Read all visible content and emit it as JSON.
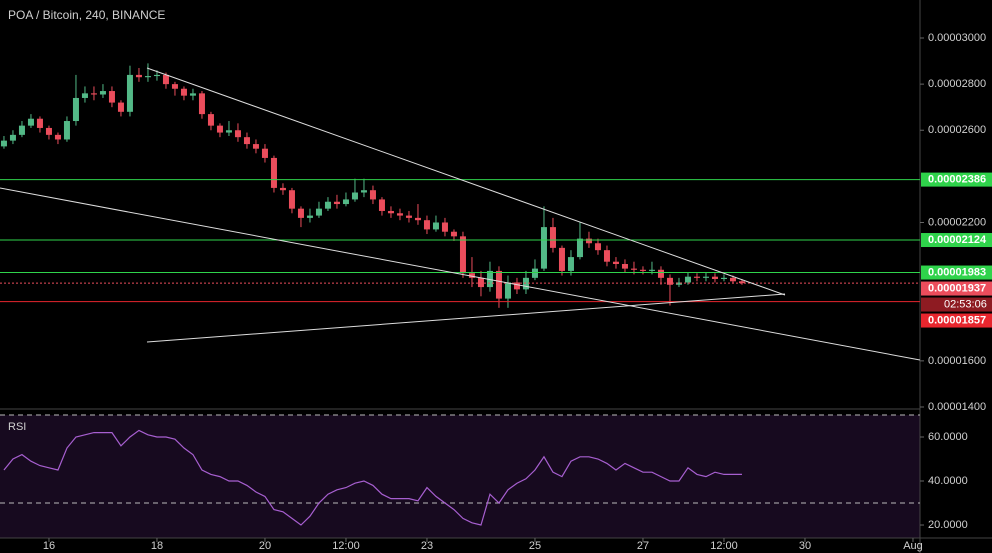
{
  "chart_data": [
    {
      "type": "candlestick",
      "title": "POA / Bitcoin, 240, BINANCE",
      "up_color": "#53b987",
      "down_color": "#eb4d5c",
      "open": [
        2.53e-05,
        2.555e-05,
        2.58e-05,
        2.62e-05,
        2.65e-05,
        2.61e-05,
        2.58e-05,
        2.56e-05,
        2.64e-05,
        2.74e-05,
        2.76e-05,
        2.755e-05,
        2.77e-05,
        2.72e-05,
        2.68e-05,
        2.84e-05,
        2.83e-05,
        2.835e-05,
        2.84e-05,
        2.8e-05,
        2.78e-05,
        2.75e-05,
        2.76e-05,
        2.67e-05,
        2.62e-05,
        2.59e-05,
        2.6e-05,
        2.57e-05,
        2.54e-05,
        2.52e-05,
        2.48e-05,
        2.35e-05,
        2.34e-05,
        2.26e-05,
        2.22e-05,
        2.23e-05,
        2.26e-05,
        2.29e-05,
        2.28e-05,
        2.3e-05,
        2.33e-05,
        2.34e-05,
        2.3e-05,
        2.25e-05,
        2.24e-05,
        2.23e-05,
        2.22e-05,
        2.21e-05,
        2.17e-05,
        2.2e-05,
        2.16e-05,
        2.14e-05,
        1.98e-05,
        1.96e-05,
        1.92e-05,
        1.99e-05,
        1.87e-05,
        1.94e-05,
        1.91e-05,
        1.96e-05,
        2e-05,
        2.18e-05,
        2.09e-05,
        1.99e-05,
        2.05e-05,
        2.13e-05,
        2.11e-05,
        2.08e-05,
        2.03e-05,
        2.02e-05,
        2e-05,
        1.995e-05,
        1.99e-05,
        1.995e-05,
        1.96e-05,
        1.93e-05,
        1.94e-05,
        1.965e-05,
        1.96e-05,
        1.965e-05,
        1.955e-05,
        1.96e-05,
        1.945e-05
      ],
      "high": [
        2.575e-05,
        2.6e-05,
        2.64e-05,
        2.67e-05,
        2.66e-05,
        2.62e-05,
        2.59e-05,
        2.66e-05,
        2.84e-05,
        2.79e-05,
        2.79e-05,
        2.8e-05,
        2.79e-05,
        2.73e-05,
        2.88e-05,
        2.87e-05,
        2.89e-05,
        2.86e-05,
        2.85e-05,
        2.81e-05,
        2.79e-05,
        2.78e-05,
        2.77e-05,
        2.68e-05,
        2.63e-05,
        2.64e-05,
        2.63e-05,
        2.59e-05,
        2.56e-05,
        2.54e-05,
        2.49e-05,
        2.37e-05,
        2.35e-05,
        2.27e-05,
        2.26e-05,
        2.29e-05,
        2.31e-05,
        2.32e-05,
        2.33e-05,
        2.39e-05,
        2.39e-05,
        2.36e-05,
        2.31e-05,
        2.27e-05,
        2.26e-05,
        2.25e-05,
        2.28e-05,
        2.23e-05,
        2.23e-05,
        2.22e-05,
        2.17e-05,
        2.16e-05,
        2.05e-05,
        1.99e-05,
        2.03e-05,
        2.01e-05,
        1.97e-05,
        1.96e-05,
        1.99e-05,
        2.04e-05,
        2.27e-05,
        2.22e-05,
        2.1e-05,
        2.08e-05,
        2.2e-05,
        2.16e-05,
        2.13e-05,
        2.1e-05,
        2.05e-05,
        2.04e-05,
        2.03e-05,
        2.01e-05,
        2.03e-05,
        2.01e-05,
        1.975e-05,
        1.96e-05,
        1.985e-05,
        1.98e-05,
        1.985e-05,
        1.98e-05,
        1.975e-05,
        1.97e-05,
        1.955e-05
      ],
      "low": [
        2.52e-05,
        2.54e-05,
        2.57e-05,
        2.61e-05,
        2.59e-05,
        2.56e-05,
        2.54e-05,
        2.55e-05,
        2.62e-05,
        2.72e-05,
        2.73e-05,
        2.74e-05,
        2.7e-05,
        2.66e-05,
        2.66e-05,
        2.81e-05,
        2.81e-05,
        2.815e-05,
        2.78e-05,
        2.75e-05,
        2.73e-05,
        2.73e-05,
        2.65e-05,
        2.6e-05,
        2.57e-05,
        2.575e-05,
        2.55e-05,
        2.52e-05,
        2.5e-05,
        2.46e-05,
        2.33e-05,
        2.32e-05,
        2.24e-05,
        2.18e-05,
        2.2e-05,
        2.22e-05,
        2.25e-05,
        2.26e-05,
        2.27e-05,
        2.29e-05,
        2.31e-05,
        2.28e-05,
        2.23e-05,
        2.22e-05,
        2.21e-05,
        2.2e-05,
        2.19e-05,
        2.15e-05,
        2.16e-05,
        2.14e-05,
        2.12e-05,
        1.96e-05,
        1.92e-05,
        1.88e-05,
        1.9e-05,
        1.83e-05,
        1.83e-05,
        1.89e-05,
        1.89e-05,
        1.95e-05,
        1.99e-05,
        2.07e-05,
        1.97e-05,
        1.97e-05,
        2.04e-05,
        2.09e-05,
        2.06e-05,
        2.01e-05,
        2e-05,
        1.985e-05,
        1.975e-05,
        1.975e-05,
        1.975e-05,
        1.93e-05,
        1.84e-05,
        1.92e-05,
        1.93e-05,
        1.945e-05,
        1.945e-05,
        1.94e-05,
        1.945e-05,
        1.935e-05,
        1.93e-05
      ],
      "close": [
        2.555e-05,
        2.58e-05,
        2.62e-05,
        2.65e-05,
        2.61e-05,
        2.58e-05,
        2.56e-05,
        2.64e-05,
        2.74e-05,
        2.76e-05,
        2.755e-05,
        2.77e-05,
        2.72e-05,
        2.68e-05,
        2.84e-05,
        2.83e-05,
        2.835e-05,
        2.84e-05,
        2.8e-05,
        2.78e-05,
        2.75e-05,
        2.76e-05,
        2.67e-05,
        2.62e-05,
        2.59e-05,
        2.6e-05,
        2.57e-05,
        2.54e-05,
        2.52e-05,
        2.48e-05,
        2.35e-05,
        2.34e-05,
        2.26e-05,
        2.22e-05,
        2.23e-05,
        2.26e-05,
        2.29e-05,
        2.28e-05,
        2.3e-05,
        2.33e-05,
        2.34e-05,
        2.3e-05,
        2.25e-05,
        2.24e-05,
        2.23e-05,
        2.22e-05,
        2.21e-05,
        2.17e-05,
        2.2e-05,
        2.16e-05,
        2.14e-05,
        1.98e-05,
        1.96e-05,
        1.92e-05,
        1.99e-05,
        1.87e-05,
        1.94e-05,
        1.91e-05,
        1.96e-05,
        2e-05,
        2.18e-05,
        2.09e-05,
        1.99e-05,
        2.05e-05,
        2.13e-05,
        2.11e-05,
        2.08e-05,
        2.03e-05,
        2.02e-05,
        2e-05,
        1.995e-05,
        1.99e-05,
        1.995e-05,
        1.96e-05,
        1.93e-05,
        1.94e-05,
        1.965e-05,
        1.96e-05,
        1.965e-05,
        1.955e-05,
        1.96e-05,
        1.945e-05,
        1.937e-05
      ],
      "xlim": [
        -0.44,
        101.78
      ],
      "xticks": [
        {
          "value": 5,
          "label": "16"
        },
        {
          "value": 17,
          "label": "18"
        },
        {
          "value": 29,
          "label": "20"
        },
        {
          "value": 38,
          "label": "12:00"
        },
        {
          "value": 47,
          "label": "23"
        },
        {
          "value": 59,
          "label": "25"
        },
        {
          "value": 71,
          "label": "27"
        },
        {
          "value": 80,
          "label": "12:00"
        },
        {
          "value": 89,
          "label": "30"
        },
        {
          "value": 101,
          "label": "Aug"
        }
      ],
      "ylim": [
        1.3956e-05,
        3.1648e-05
      ],
      "yticks": [
        {
          "value": 3e-05,
          "label": "0.00003000"
        },
        {
          "value": 2.8e-05,
          "label": "0.00002800"
        },
        {
          "value": 2.6e-05,
          "label": "0.00002600"
        },
        {
          "value": 2.2e-05,
          "label": "0.00002200"
        },
        {
          "value": 1.6e-05,
          "label": "0.00001600"
        },
        {
          "value": 1.4e-05,
          "label": "0.00001400"
        }
      ],
      "levels": [
        {
          "value": 2.386e-05,
          "label": "0.00002386",
          "color": "#2fd34b",
          "style": "solid"
        },
        {
          "value": 2.124e-05,
          "label": "0.00002124",
          "color": "#2fd34b",
          "style": "solid"
        },
        {
          "value": 1.983e-05,
          "label": "0.00001983",
          "color": "#2fd34b",
          "style": "solid"
        },
        {
          "value": 1.937e-05,
          "label": "0.00001937",
          "color": "#eb4d5c",
          "style": "dotted"
        },
        {
          "value": 1.857e-05,
          "label": "0.00001857",
          "color": "#e8262e",
          "style": "solid"
        }
      ],
      "countdown": "02:53:06"
    },
    {
      "type": "line",
      "title": "RSI",
      "color": "#a75fd0",
      "values": [
        45,
        50,
        52,
        49,
        47,
        46,
        45,
        55,
        60,
        61,
        62,
        62,
        62,
        56,
        60,
        63,
        61,
        60,
        60,
        59,
        55,
        52,
        45,
        43,
        42,
        40,
        40,
        38,
        35,
        33,
        27,
        26,
        23,
        20,
        24,
        30,
        34,
        36,
        37,
        39,
        40,
        38,
        34,
        32,
        32,
        32,
        31,
        37,
        33,
        30,
        27,
        23,
        21,
        20,
        34,
        30,
        36,
        39,
        41,
        45,
        51,
        44,
        42,
        49,
        51,
        51,
        50,
        48,
        45,
        48,
        46,
        44,
        44,
        42,
        40,
        40,
        46,
        43,
        42,
        44,
        43,
        43,
        43
      ],
      "ylim": [
        14.1,
        70
      ],
      "yticks": [
        {
          "value": 60,
          "label": "60.0000"
        },
        {
          "value": 40,
          "label": "40.0000"
        },
        {
          "value": 20,
          "label": "20.0000"
        }
      ],
      "levels": [
        30,
        70
      ]
    }
  ]
}
